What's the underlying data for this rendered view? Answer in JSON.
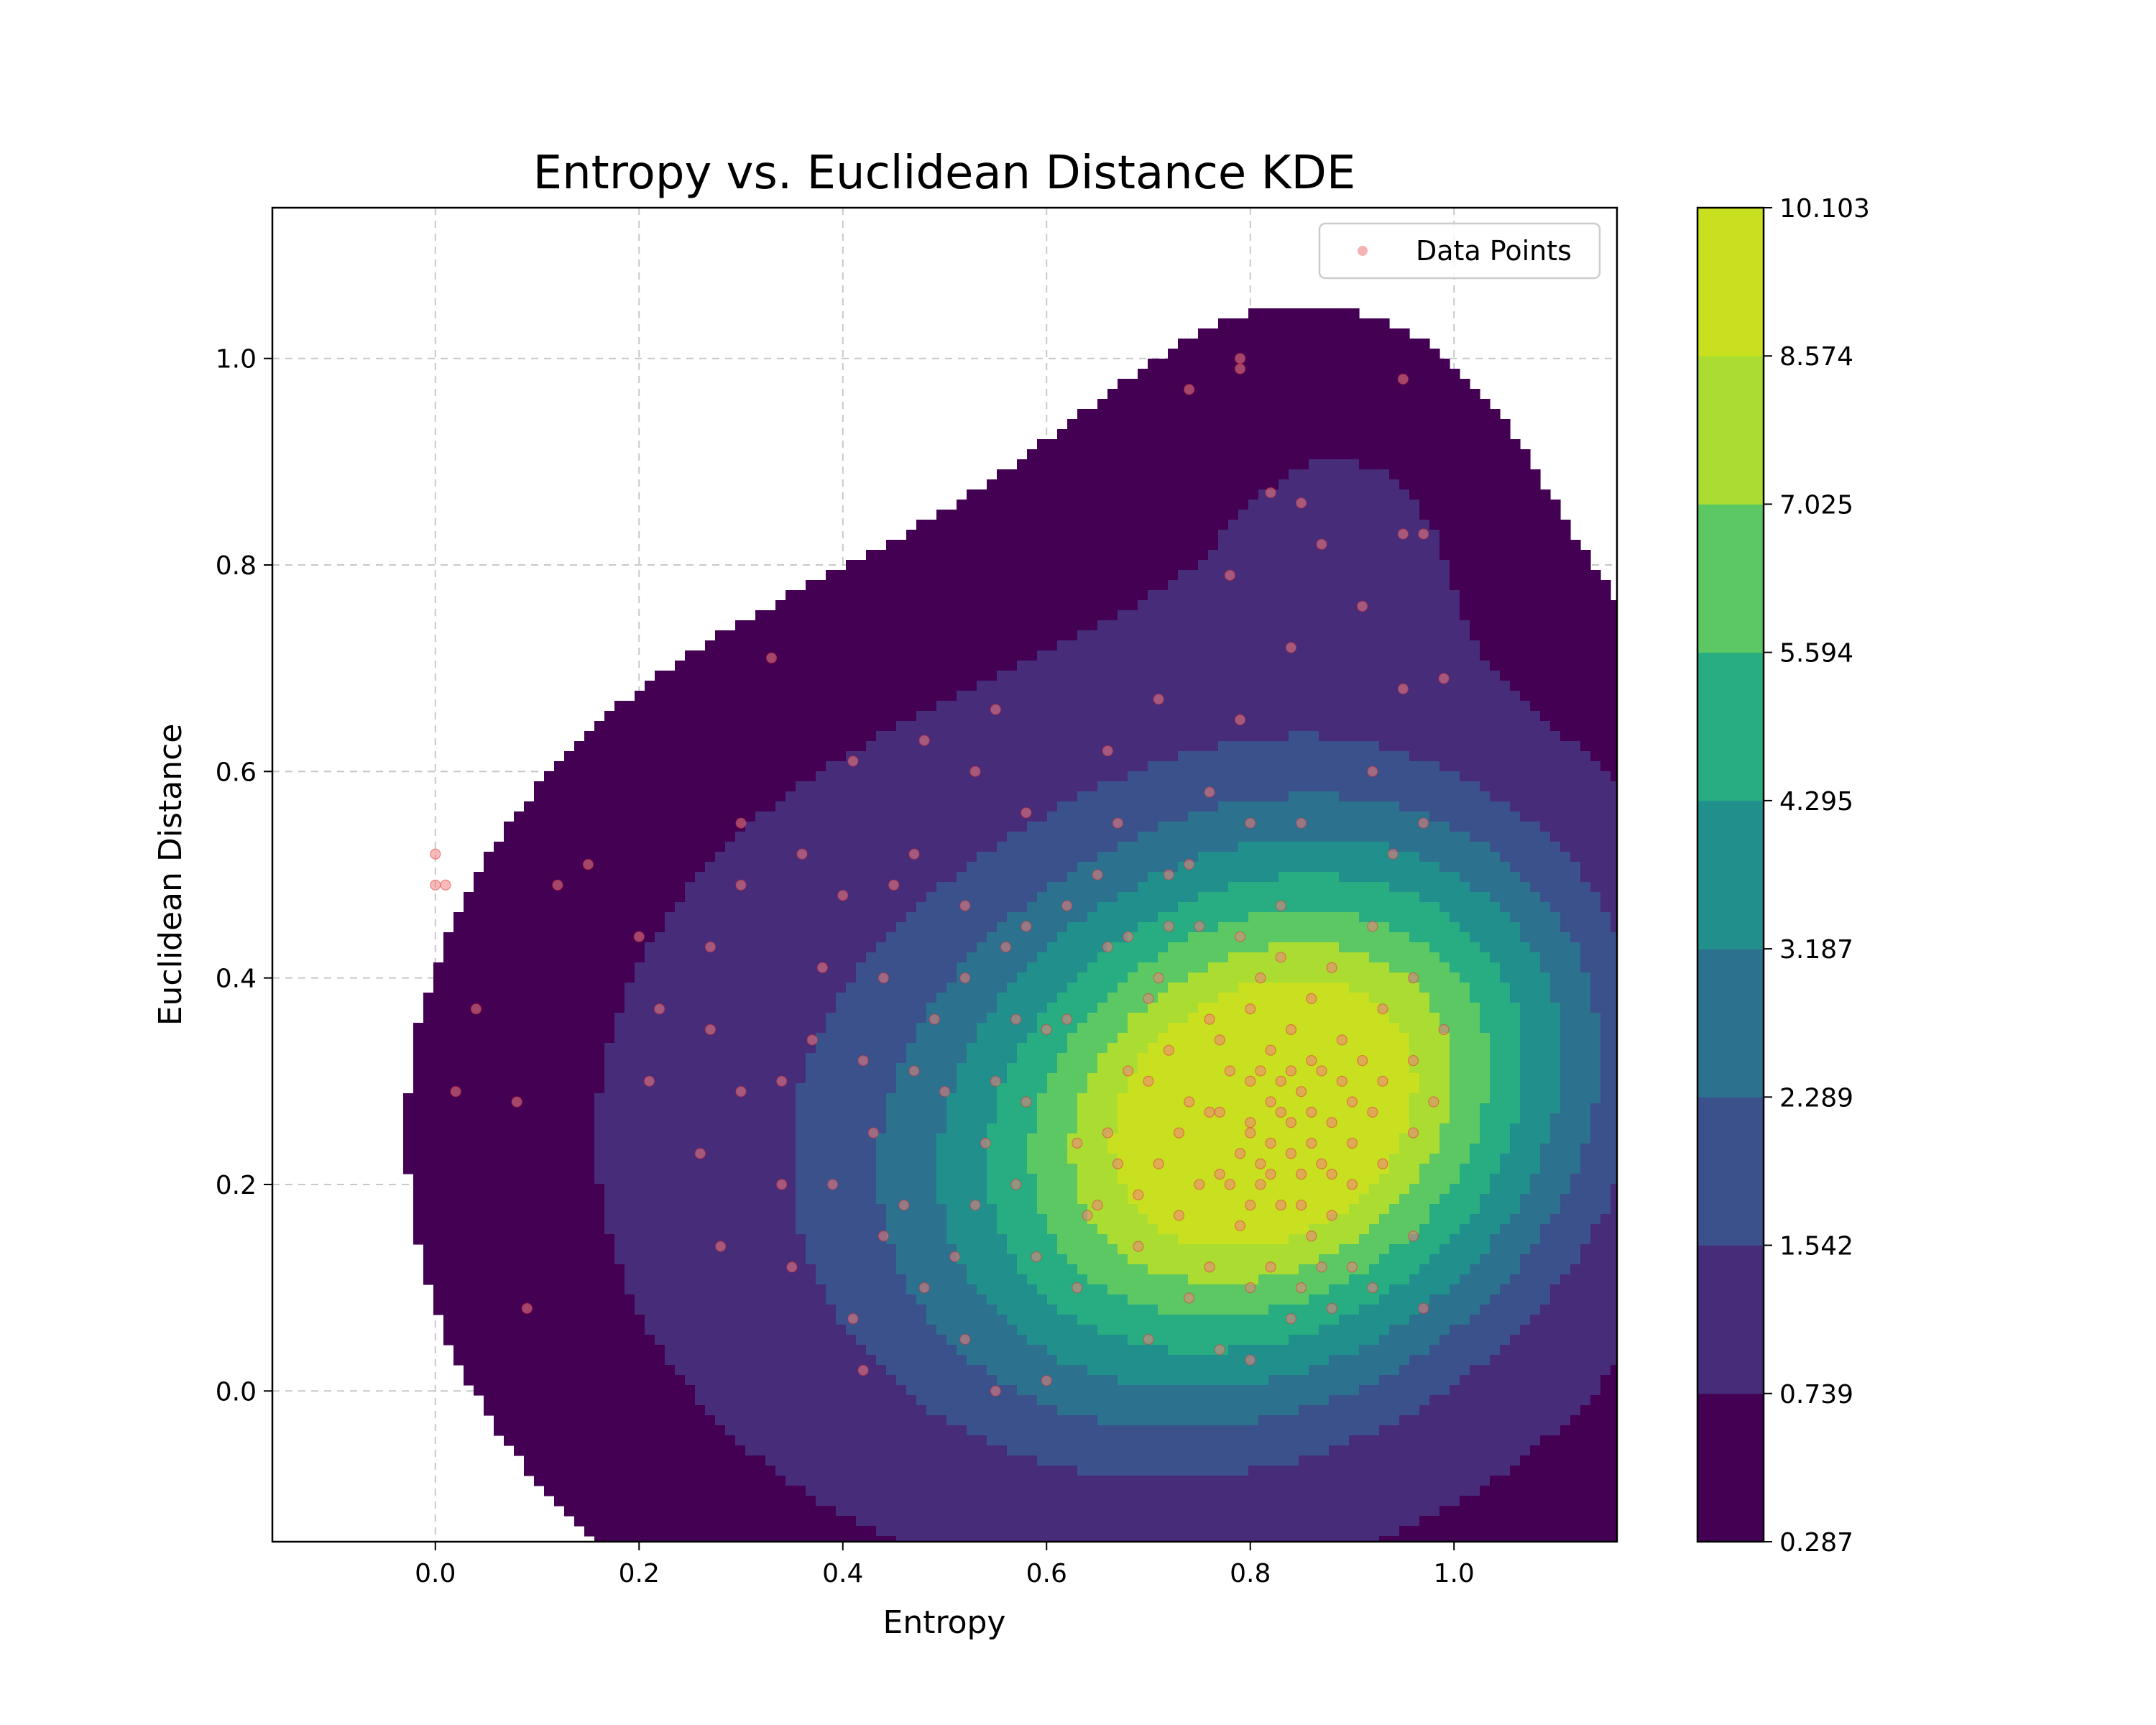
{
  "chart_data": {
    "type": "scatter",
    "title": "Entropy vs. Euclidean Distance KDE",
    "xlabel": "Entropy",
    "ylabel": "Euclidean Distance",
    "xlim": [
      -0.16,
      1.16
    ],
    "ylim": [
      -0.146,
      1.146
    ],
    "xticks": [
      0.0,
      0.2,
      0.4,
      0.6,
      0.8,
      1.0
    ],
    "yticks": [
      0.0,
      0.2,
      0.4,
      0.6,
      0.8,
      1.0
    ],
    "grid": true,
    "legend": {
      "location": "upper right",
      "entries": [
        "Data Points"
      ]
    },
    "series": [
      {
        "name": "Data Points",
        "color": "#f08080",
        "points": [
          [
            0.0,
            0.52
          ],
          [
            0.0,
            0.49
          ],
          [
            0.01,
            0.49
          ],
          [
            0.04,
            0.37
          ],
          [
            0.02,
            0.29
          ],
          [
            0.08,
            0.28
          ],
          [
            0.09,
            0.08
          ],
          [
            0.12,
            0.49
          ],
          [
            0.15,
            0.51
          ],
          [
            0.2,
            0.44
          ],
          [
            0.21,
            0.3
          ],
          [
            0.22,
            0.37
          ],
          [
            0.26,
            0.23
          ],
          [
            0.28,
            0.14
          ],
          [
            0.33,
            0.71
          ],
          [
            0.3,
            0.55
          ],
          [
            0.3,
            0.49
          ],
          [
            0.27,
            0.43
          ],
          [
            0.27,
            0.35
          ],
          [
            0.3,
            0.29
          ],
          [
            0.34,
            0.3
          ],
          [
            0.35,
            0.12
          ],
          [
            0.34,
            0.2
          ],
          [
            0.36,
            0.52
          ],
          [
            0.38,
            0.41
          ],
          [
            0.41,
            0.61
          ],
          [
            0.4,
            0.48
          ],
          [
            0.42,
            0.32
          ],
          [
            0.43,
            0.25
          ],
          [
            0.41,
            0.07
          ],
          [
            0.42,
            0.02
          ],
          [
            0.45,
            0.49
          ],
          [
            0.47,
            0.52
          ],
          [
            0.48,
            0.63
          ],
          [
            0.47,
            0.31
          ],
          [
            0.46,
            0.18
          ],
          [
            0.48,
            0.1
          ],
          [
            0.52,
            0.47
          ],
          [
            0.55,
            0.66
          ],
          [
            0.53,
            0.6
          ],
          [
            0.52,
            0.4
          ],
          [
            0.5,
            0.29
          ],
          [
            0.53,
            0.18
          ],
          [
            0.52,
            0.05
          ],
          [
            0.55,
            0.0
          ],
          [
            0.58,
            0.56
          ],
          [
            0.56,
            0.43
          ],
          [
            0.57,
            0.36
          ],
          [
            0.58,
            0.28
          ],
          [
            0.57,
            0.2
          ],
          [
            0.59,
            0.13
          ],
          [
            0.6,
            0.01
          ],
          [
            0.62,
            0.47
          ],
          [
            0.62,
            0.36
          ],
          [
            0.63,
            0.24
          ],
          [
            0.64,
            0.17
          ],
          [
            0.63,
            0.1
          ],
          [
            0.66,
            0.62
          ],
          [
            0.67,
            0.55
          ],
          [
            0.66,
            0.43
          ],
          [
            0.68,
            0.31
          ],
          [
            0.67,
            0.22
          ],
          [
            0.69,
            0.14
          ],
          [
            0.7,
            0.05
          ],
          [
            0.71,
            0.67
          ],
          [
            0.72,
            0.5
          ],
          [
            0.71,
            0.4
          ],
          [
            0.72,
            0.33
          ],
          [
            0.73,
            0.25
          ],
          [
            0.73,
            0.17
          ],
          [
            0.74,
            0.09
          ],
          [
            0.74,
            0.97
          ],
          [
            0.76,
            0.58
          ],
          [
            0.75,
            0.45
          ],
          [
            0.76,
            0.36
          ],
          [
            0.76,
            0.27
          ],
          [
            0.77,
            0.21
          ],
          [
            0.76,
            0.12
          ],
          [
            0.77,
            0.04
          ],
          [
            0.79,
            0.99
          ],
          [
            0.79,
            1.0
          ],
          [
            0.78,
            0.79
          ],
          [
            0.79,
            0.65
          ],
          [
            0.8,
            0.55
          ],
          [
            0.79,
            0.44
          ],
          [
            0.8,
            0.37
          ],
          [
            0.8,
            0.3
          ],
          [
            0.8,
            0.25
          ],
          [
            0.81,
            0.22
          ],
          [
            0.8,
            0.18
          ],
          [
            0.8,
            0.1
          ],
          [
            0.8,
            0.03
          ],
          [
            0.82,
            0.28
          ],
          [
            0.82,
            0.24
          ],
          [
            0.83,
            0.27
          ],
          [
            0.83,
            0.3
          ],
          [
            0.84,
            0.23
          ],
          [
            0.84,
            0.26
          ],
          [
            0.85,
            0.29
          ],
          [
            0.85,
            0.21
          ],
          [
            0.86,
            0.27
          ],
          [
            0.86,
            0.24
          ],
          [
            0.82,
            0.33
          ],
          [
            0.84,
            0.35
          ],
          [
            0.81,
            0.2
          ],
          [
            0.83,
            0.18
          ],
          [
            0.87,
            0.31
          ],
          [
            0.87,
            0.22
          ],
          [
            0.88,
            0.26
          ],
          [
            0.86,
            0.15
          ],
          [
            0.82,
            0.12
          ],
          [
            0.84,
            0.07
          ],
          [
            0.88,
            0.08
          ],
          [
            0.83,
            0.47
          ],
          [
            0.85,
            0.55
          ],
          [
            0.84,
            0.72
          ],
          [
            0.82,
            0.87
          ],
          [
            0.85,
            0.86
          ],
          [
            0.87,
            0.82
          ],
          [
            0.88,
            0.41
          ],
          [
            0.89,
            0.34
          ],
          [
            0.9,
            0.28
          ],
          [
            0.9,
            0.2
          ],
          [
            0.9,
            0.12
          ],
          [
            0.91,
            0.76
          ],
          [
            0.92,
            0.6
          ],
          [
            0.92,
            0.45
          ],
          [
            0.93,
            0.37
          ],
          [
            0.93,
            0.3
          ],
          [
            0.93,
            0.22
          ],
          [
            0.92,
            0.1
          ],
          [
            0.94,
            0.52
          ],
          [
            0.95,
            0.98
          ],
          [
            0.95,
            0.83
          ],
          [
            0.95,
            0.68
          ],
          [
            0.96,
            0.4
          ],
          [
            0.96,
            0.32
          ],
          [
            0.96,
            0.25
          ],
          [
            0.96,
            0.15
          ],
          [
            0.97,
            0.83
          ],
          [
            0.97,
            0.08
          ],
          [
            0.99,
            0.69
          ],
          [
            0.99,
            0.35
          ],
          [
            0.98,
            0.28
          ],
          [
            0.97,
            0.55
          ],
          [
            0.91,
            0.32
          ],
          [
            0.9,
            0.24
          ],
          [
            0.78,
            0.31
          ],
          [
            0.77,
            0.34
          ],
          [
            0.79,
            0.16
          ],
          [
            0.75,
            0.2
          ],
          [
            0.74,
            0.28
          ],
          [
            0.71,
            0.22
          ],
          [
            0.7,
            0.3
          ],
          [
            0.69,
            0.19
          ],
          [
            0.66,
            0.25
          ],
          [
            0.65,
            0.18
          ],
          [
            0.88,
            0.17
          ],
          [
            0.87,
            0.12
          ],
          [
            0.85,
            0.1
          ],
          [
            0.81,
            0.4
          ],
          [
            0.83,
            0.42
          ],
          [
            0.86,
            0.38
          ],
          [
            0.89,
            0.3
          ],
          [
            0.92,
            0.27
          ],
          [
            0.79,
            0.23
          ],
          [
            0.77,
            0.27
          ],
          [
            0.81,
            0.31
          ],
          [
            0.84,
            0.31
          ],
          [
            0.86,
            0.32
          ],
          [
            0.88,
            0.21
          ],
          [
            0.8,
            0.26
          ],
          [
            0.82,
            0.21
          ],
          [
            0.85,
            0.18
          ],
          [
            0.78,
            0.2
          ],
          [
            0.6,
            0.35
          ],
          [
            0.58,
            0.45
          ],
          [
            0.55,
            0.3
          ],
          [
            0.54,
            0.24
          ],
          [
            0.51,
            0.13
          ],
          [
            0.49,
            0.36
          ],
          [
            0.44,
            0.4
          ],
          [
            0.44,
            0.15
          ],
          [
            0.39,
            0.2
          ],
          [
            0.37,
            0.34
          ],
          [
            0.65,
            0.5
          ],
          [
            0.68,
            0.44
          ],
          [
            0.7,
            0.38
          ],
          [
            0.72,
            0.45
          ],
          [
            0.74,
            0.51
          ]
        ]
      }
    ],
    "density": {
      "colorbar": {
        "levels": [
          0.287,
          0.739,
          1.542,
          2.289,
          3.187,
          4.295,
          5.594,
          7.025,
          8.574,
          10.103
        ],
        "tick_labels": [
          "0.287",
          "0.739",
          "1.542",
          "2.289",
          "3.187",
          "4.295",
          "5.594",
          "7.025",
          "8.574",
          "10.103"
        ],
        "colors": [
          "#440154",
          "#472c7a",
          "#3b518b",
          "#2c718e",
          "#21908d",
          "#27ad81",
          "#5cc863",
          "#aadc32",
          "#c8e020"
        ]
      },
      "peak": [
        0.83,
        0.27
      ],
      "clusters": [
        {
          "center": [
            0.82,
            0.27
          ],
          "radius": [
            0.17,
            0.13
          ],
          "weight": 10.1,
          "tilt_deg": 30
        },
        {
          "center": [
            0.72,
            0.23
          ],
          "radius": [
            0.36,
            0.28
          ],
          "weight": 1.6
        },
        {
          "center": [
            0.52,
            0.28
          ],
          "radius": [
            0.3,
            0.3
          ],
          "weight": 0.55
        },
        {
          "center": [
            0.85,
            0.62
          ],
          "radius": [
            0.2,
            0.36
          ],
          "weight": 0.5
        },
        {
          "center": [
            0.9,
            0.82
          ],
          "radius": [
            0.08,
            0.09
          ],
          "weight": 0.4
        }
      ]
    }
  }
}
